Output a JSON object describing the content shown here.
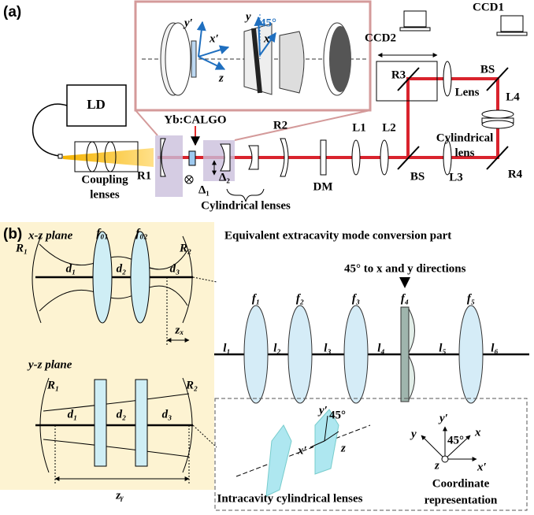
{
  "panel_a": {
    "label": "(a)",
    "ld": "LD",
    "crystal": "Yb:CALGO",
    "r1": "R1",
    "delta1": "Δ₁",
    "delta2": "Δ₂",
    "coupling": [
      "Coupling",
      "lenses"
    ],
    "cyl_lenses": "Cylindrical lenses",
    "r2": "R2",
    "dm": "DM",
    "l1": "L1",
    "l2": "L2",
    "bs1": "BS",
    "l3": "L3",
    "r3": "R3",
    "lens": "Lens",
    "ccd2": "CCD2",
    "ccd1": "CCD1",
    "bs2": "BS",
    "l4": "L4",
    "cyl_lens": [
      "Cylindrical",
      "lens"
    ],
    "r4": "R4",
    "inset": {
      "y_prime": "y′",
      "x_prime": "x′",
      "z": "z",
      "y": "y",
      "angle": "45°",
      "x": "x"
    }
  },
  "panel_b": {
    "label": "(b)",
    "xz": {
      "title": "x-z plane",
      "r1": "R₁",
      "f01": "f₀₁",
      "f02": "f₀₂",
      "r2": "R₂",
      "d1": "d₁",
      "d2": "d₂",
      "d3": "d₃",
      "zx": "zₓ"
    },
    "yz": {
      "title": "y-z plane",
      "r1": "R₁",
      "r2": "R₂",
      "d1": "d₁",
      "d2": "d₂",
      "d3": "d₃",
      "zy": "zᵧ"
    },
    "title": "Equivalent extracavity mode conversion part",
    "note": "45° to x and y directions",
    "f": [
      "f₁",
      "f₂",
      "f₃",
      "f₄",
      "f₅"
    ],
    "l": [
      "l₁",
      "l₂",
      "l₃",
      "l₄",
      "l₅",
      "l₆"
    ],
    "intracavity": {
      "y_prime": "y′",
      "angle": "45°",
      "x_prime": "x′",
      "z": "z",
      "caption": "Intracavity cylindrical lenses"
    },
    "coords": {
      "y_prime": "y′",
      "y": "y",
      "angle": "45°",
      "x": "x",
      "z": "z",
      "x_prime": "x′",
      "caption": [
        "Coordinate",
        "representation"
      ]
    }
  }
}
